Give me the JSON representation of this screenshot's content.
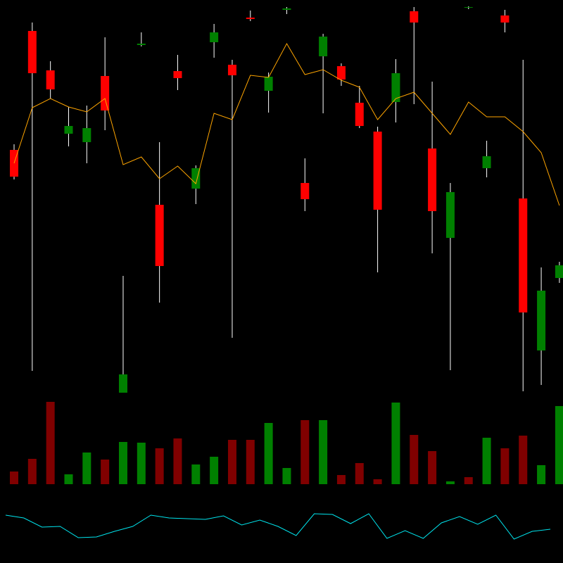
{
  "chart_data": [
    {
      "type": "candlestick",
      "open": [
        587,
        756,
        700,
        610,
        598,
        692,
        242,
        736,
        509,
        699,
        532,
        740,
        708,
        775,
        671,
        786,
        540,
        720,
        706,
        654,
        613,
        655,
        784,
        589,
        462,
        789,
        561,
        778,
        518,
        302,
        405
      ],
      "high": [
        595,
        768,
        713,
        648,
        650,
        747,
        408,
        754,
        598,
        722,
        565,
        766,
        715,
        785,
        697,
        790,
        575,
        752,
        710,
        678,
        620,
        716,
        790,
        684,
        540,
        791,
        600,
        786,
        715,
        420,
        428
      ],
      "low": [
        545,
        273,
        660,
        592,
        568,
        615,
        242,
        734,
        370,
        672,
        510,
        718,
        320,
        770,
        640,
        780,
        500,
        639,
        678,
        618,
        413,
        626,
        652,
        440,
        274,
        787,
        548,
        754,
        244,
        253,
        398
      ],
      "close": [
        549,
        696,
        673,
        621,
        618,
        643,
        268,
        738,
        422,
        689,
        561,
        754,
        693,
        773,
        691,
        788,
        517,
        748,
        687,
        621,
        502,
        696,
        768,
        500,
        527,
        790,
        578,
        768,
        356,
        387,
        423
      ],
      "up_color": "#008000",
      "down_color": "#ff0000",
      "wick_color": "#ffffff",
      "ylim": [
        0,
        800
      ],
      "series": [
        {
          "color": "#ffa500",
          "values": [
            568,
            647,
            660,
            648,
            641,
            660,
            566,
            577,
            546,
            564,
            539,
            639,
            630,
            693,
            690,
            738,
            694,
            701,
            686,
            676,
            630,
            660,
            669,
            639,
            609,
            655,
            634,
            634,
            613,
            583,
            508
          ]
        }
      ]
    },
    {
      "type": "bar",
      "values": [
        18,
        36,
        117,
        14,
        45,
        35,
        60,
        59,
        51,
        65,
        28,
        39,
        63,
        63,
        87,
        23,
        91,
        91,
        13,
        30,
        7,
        116,
        70,
        47,
        4,
        10,
        66,
        51,
        69,
        27,
        111
      ],
      "colors": [
        "#800000",
        "#800000",
        "#800000",
        "#008000",
        "#008000",
        "#800000",
        "#008000",
        "#008000",
        "#800000",
        "#800000",
        "#008000",
        "#008000",
        "#800000",
        "#800000",
        "#008000",
        "#008000",
        "#800000",
        "#008000",
        "#800000",
        "#800000",
        "#800000",
        "#008000",
        "#800000",
        "#800000",
        "#008000",
        "#800000",
        "#008000",
        "#800000",
        "#800000",
        "#008000",
        "#008000"
      ],
      "ylim": [
        0,
        130
      ]
    },
    {
      "type": "line",
      "values": [
        68,
        64,
        51,
        52,
        36,
        37,
        45,
        52,
        68,
        64,
        63,
        62,
        67,
        54,
        61,
        52,
        39,
        70,
        69,
        56,
        70,
        35,
        46,
        35,
        57,
        66,
        55,
        68,
        34,
        45,
        48
      ],
      "color": "#00e5ee",
      "ylim": [
        0,
        100
      ]
    }
  ]
}
